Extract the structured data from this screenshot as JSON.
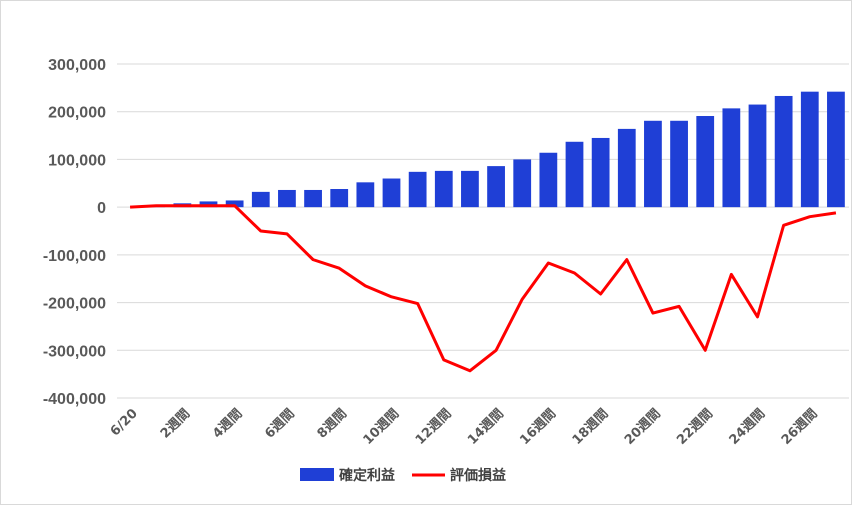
{
  "chart_data": {
    "type": "bar+line",
    "categories": [
      "6/20",
      "",
      "2週間",
      "",
      "4週間",
      "",
      "6週間",
      "",
      "8週間",
      "",
      "10週間",
      "",
      "12週間",
      "",
      "14週間",
      "",
      "16週間",
      "",
      "18週間",
      "",
      "20週間",
      "",
      "22週間",
      "",
      "24週間",
      "",
      "26週間",
      ""
    ],
    "ylim": [
      -400000,
      300000
    ],
    "yticks": [
      "300,000",
      "200,000",
      "100,000",
      "0",
      "-100,000",
      "-200,000",
      "-300,000",
      "-400,000"
    ],
    "grid": true,
    "legend_position": "bottom",
    "series": [
      {
        "name": "確定利益",
        "type": "bar",
        "color": "#1f3fd6",
        "values": [
          0,
          3000,
          8000,
          12000,
          14000,
          32000,
          36000,
          36000,
          38000,
          52000,
          60000,
          74000,
          76000,
          76000,
          86000,
          100000,
          114000,
          137000,
          145000,
          164000,
          181000,
          181000,
          191000,
          207000,
          215000,
          233000,
          242000,
          242000
        ]
      },
      {
        "name": "評価損益",
        "type": "line",
        "color": "#ff0000",
        "values": [
          0,
          3000,
          3000,
          3000,
          3000,
          -50000,
          -56000,
          -110000,
          -128000,
          -165000,
          -188000,
          -202000,
          -320000,
          -343000,
          -300000,
          -193000,
          -117000,
          -138000,
          -182000,
          -110000,
          -222000,
          -208000,
          -300000,
          -141000,
          -230000,
          -38000,
          -20000,
          -12000
        ]
      }
    ]
  }
}
